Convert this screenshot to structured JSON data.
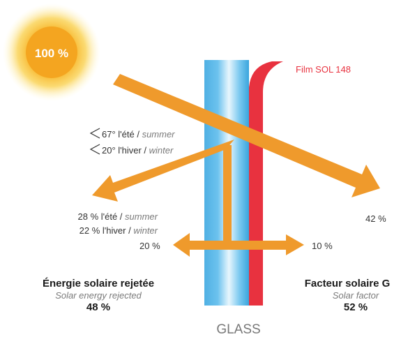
{
  "sun": {
    "value": "100 %"
  },
  "film": {
    "label": "Film SOL 148"
  },
  "angles": {
    "summer": {
      "fr": "67° l'été / ",
      "en": "summer"
    },
    "winter": {
      "fr": "20° l'hiver / ",
      "en": "winter"
    }
  },
  "reflected": {
    "summer": {
      "fr": "28 % l'été / ",
      "en": "summer"
    },
    "winter": {
      "fr": "22 % l'hiver / ",
      "en": "winter"
    }
  },
  "transmitted_value": "42 %",
  "absorbed_out": "20 %",
  "absorbed_in": "10 %",
  "rejected": {
    "title": "Énergie solaire rejetée",
    "subtitle": "Solar energy rejected",
    "value": "48 %"
  },
  "solar_factor": {
    "title": "Facteur solaire G",
    "subtitle": "Solar factor",
    "value": "52 %"
  },
  "glass_label": "GLASS",
  "colors": {
    "arrow": "#ef9a2c",
    "film": "#e8323f",
    "glass": "#5ab8e6",
    "sun": "#f6b624"
  }
}
